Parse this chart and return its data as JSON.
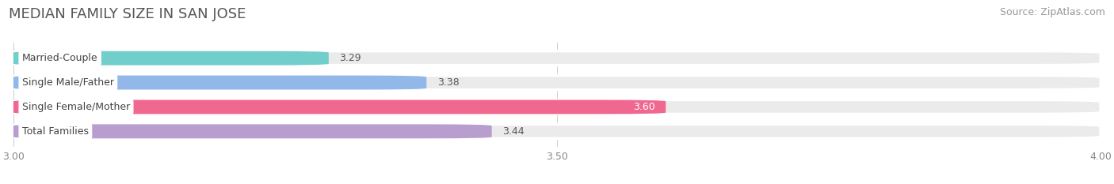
{
  "title": "MEDIAN FAMILY SIZE IN SAN JOSE",
  "source": "Source: ZipAtlas.com",
  "categories": [
    "Married-Couple",
    "Single Male/Father",
    "Single Female/Mother",
    "Total Families"
  ],
  "values": [
    3.29,
    3.38,
    3.6,
    3.44
  ],
  "bar_colors": [
    "#72ceca",
    "#92b8ea",
    "#f06890",
    "#b89ece"
  ],
  "value_label_colors": [
    "#555555",
    "#555555",
    "#ffffff",
    "#555555"
  ],
  "xlim_min": 3.0,
  "xlim_max": 4.0,
  "xticks": [
    3.0,
    3.5,
    4.0
  ],
  "xtick_labels": [
    "3.00",
    "3.50",
    "4.00"
  ],
  "background_color": "#ffffff",
  "bar_bg_color": "#ebebeb",
  "title_fontsize": 13,
  "source_fontsize": 9,
  "cat_label_fontsize": 9,
  "value_fontsize": 9,
  "tick_fontsize": 9,
  "bar_height": 0.58,
  "fig_width": 14.06,
  "fig_height": 2.33
}
